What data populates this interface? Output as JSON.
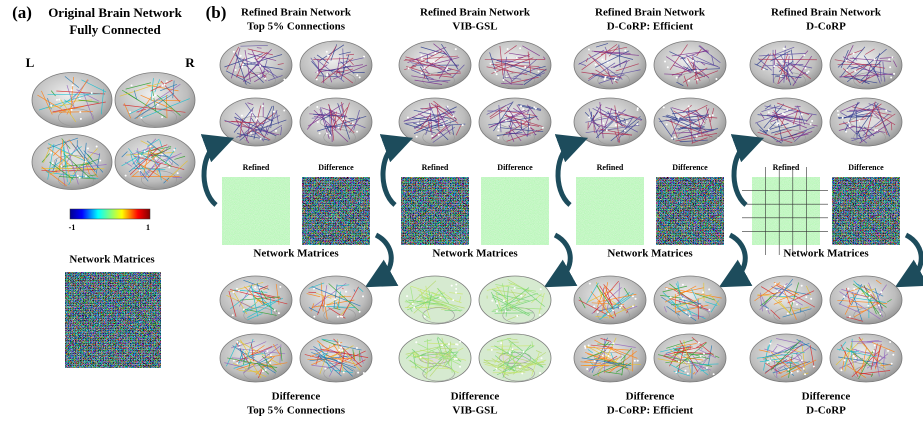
{
  "panel_a": {
    "label": "(a)",
    "title": [
      "Original Brain Network",
      "Fully Connected"
    ],
    "hemispheres": [
      "L",
      "R"
    ],
    "colorbar": {
      "min": -1,
      "max": 1
    },
    "matrix_label": "Network Matrices"
  },
  "panel_b": {
    "label": "(b)",
    "columns": [
      {
        "top_title": [
          "Refined Brain Network",
          "Top 5% Connections"
        ],
        "refined": "Refined",
        "difference": "Difference",
        "matrix_label": "Network Matrices",
        "bottom_title": [
          "Difference",
          "Top 5% Connections"
        ]
      },
      {
        "top_title": [
          "Refined Brain Network",
          "VIB-GSL"
        ],
        "refined": "Refined",
        "difference": "Difference",
        "matrix_label": "Network Matrices",
        "bottom_title": [
          "Difference",
          "VIB-GSL"
        ]
      },
      {
        "top_title": [
          "Refined Brain Network",
          "D-CoRP: Efficient"
        ],
        "refined": "Refined",
        "difference": "Difference",
        "matrix_label": "Network Matrices",
        "bottom_title": [
          "Difference",
          "D-CoRP: Efficient"
        ]
      },
      {
        "top_title": [
          "Refined Brain Network",
          "D-CoRP"
        ],
        "refined": "Refined",
        "difference": "Difference",
        "matrix_label": "Network Matrices",
        "bottom_title": [
          "Difference",
          "D-CoRP"
        ]
      }
    ]
  }
}
